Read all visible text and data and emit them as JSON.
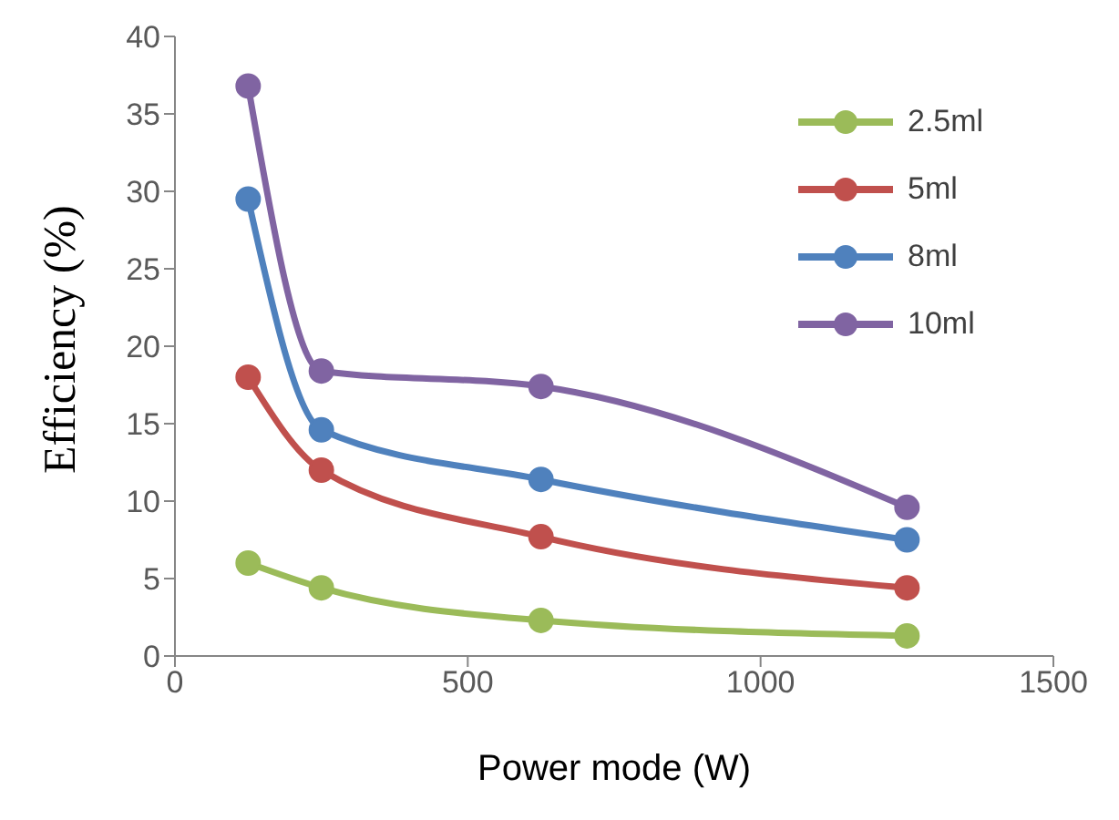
{
  "chart_data": {
    "type": "line",
    "xlabel": "Power mode (W)",
    "ylabel": "Efficiency (%)",
    "x": [
      125,
      250,
      625,
      1250
    ],
    "series": [
      {
        "name": "2.5ml",
        "color": "#9bbb59",
        "values": [
          6.0,
          4.4,
          2.3,
          1.3
        ]
      },
      {
        "name": "5ml",
        "color": "#c0504d",
        "values": [
          18.0,
          12.0,
          7.7,
          4.4
        ]
      },
      {
        "name": "8ml",
        "color": "#4f81bd",
        "values": [
          29.5,
          14.6,
          11.4,
          7.5
        ]
      },
      {
        "name": "10ml",
        "color": "#8064a2",
        "values": [
          36.8,
          18.4,
          17.4,
          9.6
        ]
      }
    ],
    "xlim": [
      0,
      1500
    ],
    "xticks": [
      0,
      500,
      1000,
      1500
    ],
    "ylim": [
      0,
      40
    ],
    "yticks": [
      0,
      5,
      10,
      15,
      20,
      25,
      30,
      35,
      40
    ],
    "grid": false,
    "legend": "top right",
    "marker": "circle",
    "line_style": "solid"
  }
}
